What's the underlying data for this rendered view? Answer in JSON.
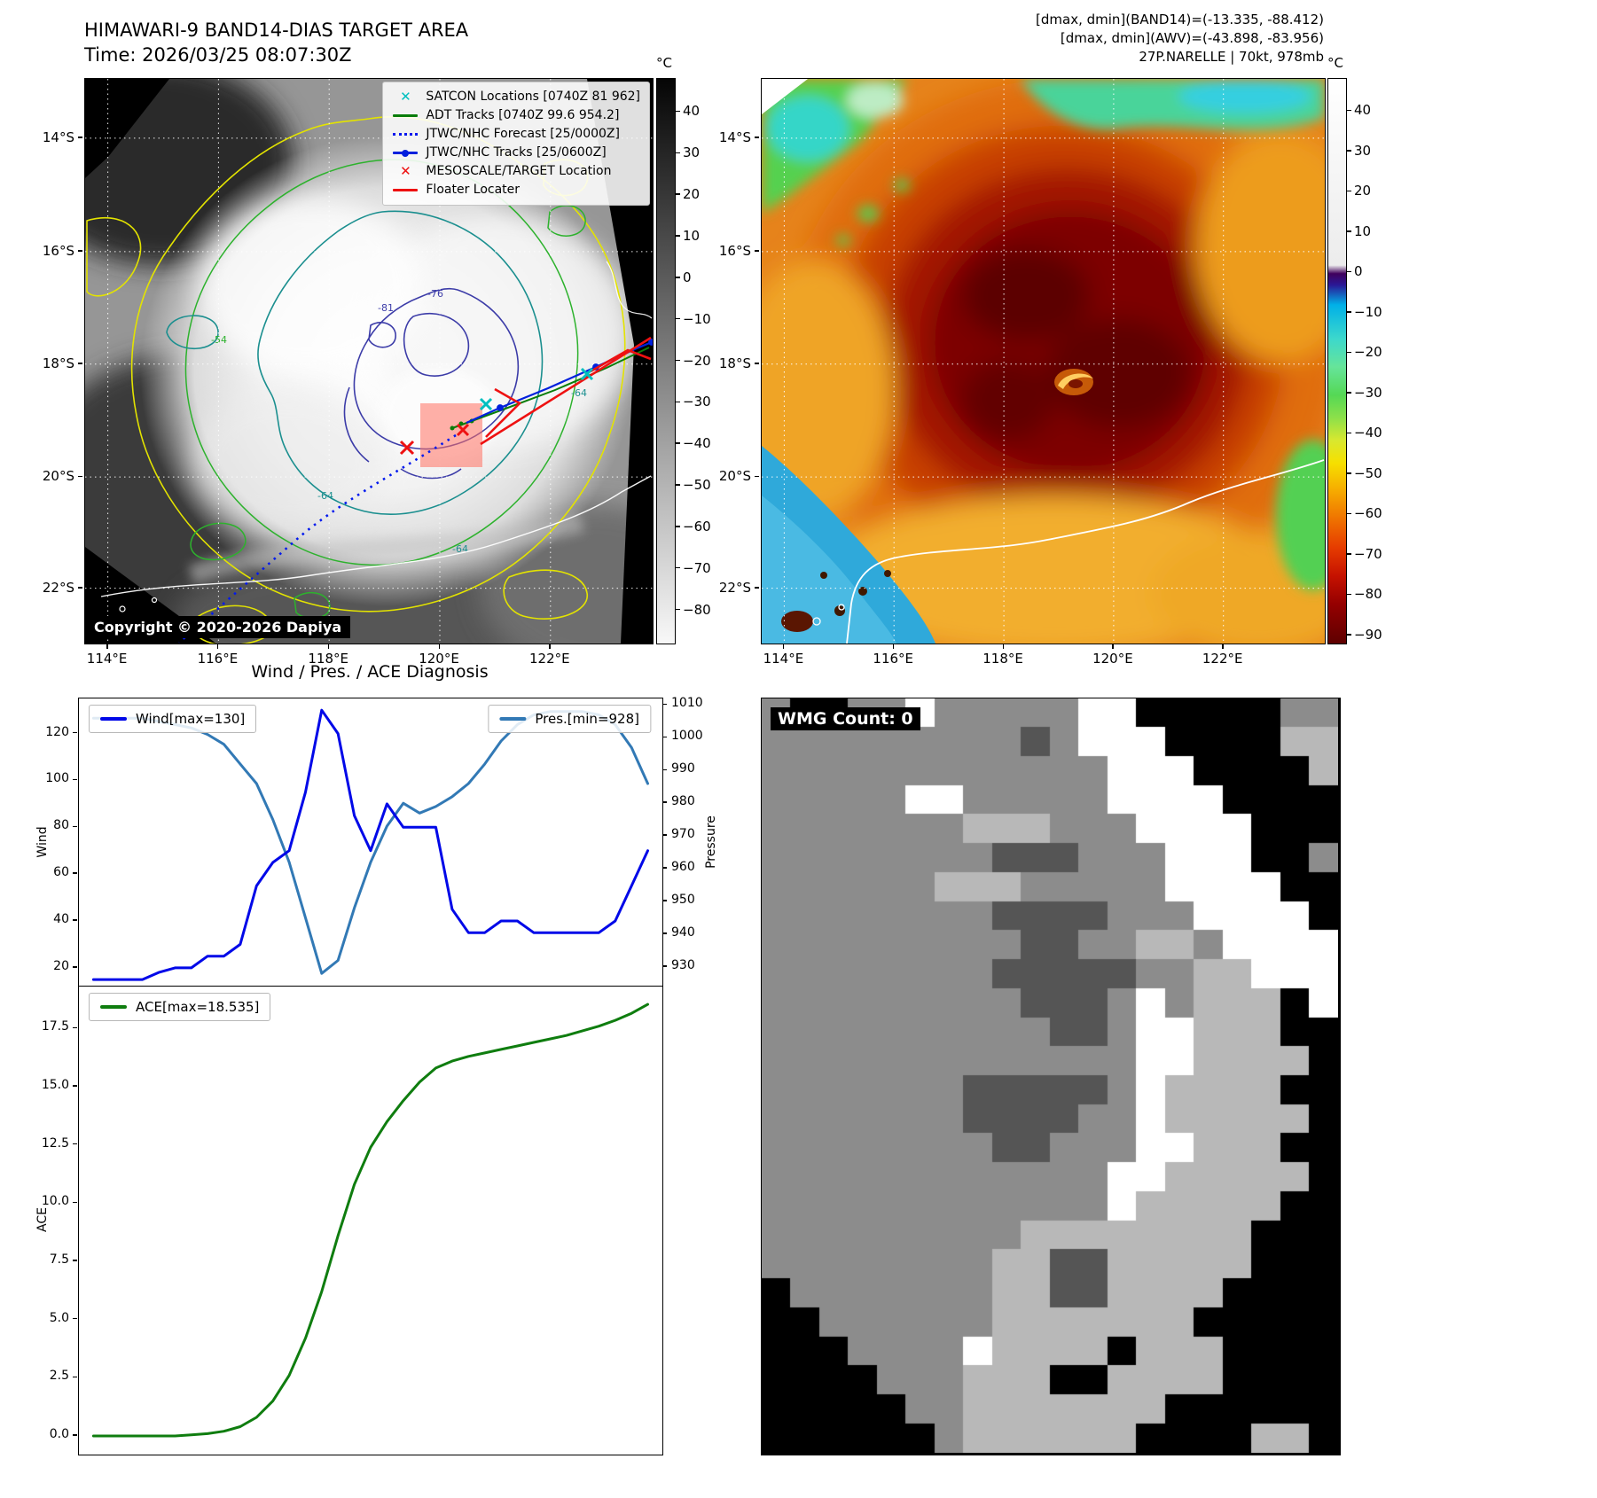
{
  "band14": {
    "title": "HIMAWARI-9 BAND14-DIAS TARGET AREA",
    "time": "Time: 2026/03/25 08:07:30Z",
    "copyright": "Copyright © 2020-2026 Dapiya",
    "legend": [
      {
        "label": "SATCON Locations [0740Z 81 962]",
        "marker": "x",
        "color": "#00bfbf"
      },
      {
        "label": "ADT Tracks [0740Z 99.6 954.2]",
        "marker": "line",
        "color": "#0a7d0a"
      },
      {
        "label": "JTWC/NHC Forecast [25/0000Z]",
        "marker": "dotted",
        "color": "#0018ee"
      },
      {
        "label": "JTWC/NHC Tracks [25/0600Z]",
        "marker": "line-dot",
        "color": "#0020dd"
      },
      {
        "label": "MESOSCALE/TARGET Location",
        "marker": "x",
        "color": "#ee1111"
      },
      {
        "label": "Floater Locater",
        "marker": "line",
        "color": "#ee1111"
      }
    ],
    "lat_ticks": [
      "14°S",
      "16°S",
      "18°S",
      "20°S",
      "22°S"
    ],
    "lon_ticks": [
      "114°E",
      "116°E",
      "118°E",
      "120°E",
      "122°E"
    ],
    "colorbar": {
      "unit": "°C",
      "ticks": [
        40,
        30,
        20,
        10,
        0,
        -10,
        -20,
        -30,
        -40,
        -50,
        -60,
        -70,
        -80
      ]
    },
    "contour_labels": [
      "-81",
      "-76",
      "-64",
      "-64",
      "-64",
      "-54"
    ]
  },
  "awv": {
    "info_lines": [
      "[dmax, dmin](BAND14)=(-13.335, -88.412)",
      "[dmax, dmin](AWV)=(-43.898, -83.956)",
      "27P.NARELLE | 70kt, 978mb"
    ],
    "lat_ticks": [
      "14°S",
      "16°S",
      "18°S",
      "20°S",
      "22°S"
    ],
    "lon_ticks": [
      "114°E",
      "116°E",
      "118°E",
      "120°E",
      "122°E"
    ],
    "colorbar": {
      "unit": "°C",
      "ticks": [
        40,
        30,
        20,
        10,
        0,
        -10,
        -20,
        -30,
        -40,
        -50,
        -60,
        -70,
        -80,
        -90
      ]
    }
  },
  "chart_data": [
    {
      "type": "line",
      "title": "Wind / Pres. / ACE Diagnosis",
      "x": [
        0,
        1,
        2,
        3,
        4,
        5,
        6,
        7,
        8,
        9,
        10,
        11,
        12,
        13,
        14,
        15,
        16,
        17,
        18,
        19,
        20,
        21,
        22,
        23,
        24,
        25,
        26,
        27,
        28,
        29,
        30,
        31,
        32,
        33,
        34
      ],
      "series": [
        {
          "name": "Wind[max=130]",
          "axis": "left",
          "color": "#0008e8",
          "values": [
            15,
            15,
            15,
            15,
            18,
            20,
            20,
            25,
            25,
            30,
            55,
            65,
            70,
            95,
            130,
            120,
            85,
            70,
            90,
            80,
            80,
            80,
            45,
            35,
            35,
            40,
            40,
            35,
            35,
            35,
            35,
            35,
            40,
            55,
            70
          ]
        },
        {
          "name": "Pres.[min=928]",
          "axis": "right",
          "color": "#3279b5",
          "values": [
            1006,
            1006,
            1006,
            1006,
            1005,
            1004,
            1003,
            1001,
            998,
            992,
            986,
            975,
            962,
            945,
            928,
            932,
            948,
            962,
            973,
            980,
            977,
            979,
            982,
            986,
            992,
            999,
            1004,
            1007,
            1008,
            1008,
            1008,
            1007,
            1004,
            997,
            986
          ]
        }
      ],
      "ylabel_left": "Wind",
      "ylabel_right": "Pressure",
      "ylim_left": [
        12,
        135
      ],
      "ylim_right": [
        924,
        1012
      ],
      "yticks_left": [
        20,
        40,
        60,
        80,
        100,
        120
      ],
      "yticks_right": [
        930,
        940,
        950,
        960,
        970,
        980,
        990,
        1000,
        1010
      ],
      "grid": false,
      "legend_position": "top-left / top-right"
    },
    {
      "type": "line",
      "title": "",
      "x": [
        0,
        1,
        2,
        3,
        4,
        5,
        6,
        7,
        8,
        9,
        10,
        11,
        12,
        13,
        14,
        15,
        16,
        17,
        18,
        19,
        20,
        21,
        22,
        23,
        24,
        25,
        26,
        27,
        28,
        29,
        30,
        31,
        32,
        33,
        34
      ],
      "series": [
        {
          "name": "ACE[max=18.535]",
          "axis": "left",
          "color": "#0f7d0f",
          "values": [
            0,
            0,
            0,
            0,
            0,
            0,
            0.05,
            0.1,
            0.2,
            0.4,
            0.8,
            1.5,
            2.6,
            4.2,
            6.2,
            8.6,
            10.8,
            12.4,
            13.5,
            14.4,
            15.2,
            15.8,
            16.1,
            16.3,
            16.45,
            16.6,
            16.75,
            16.9,
            17.05,
            17.2,
            17.4,
            17.6,
            17.85,
            18.15,
            18.535
          ]
        }
      ],
      "ylabel": "ACE",
      "ylim": [
        -0.8,
        19.3
      ],
      "yticks": [
        0.0,
        2.5,
        5.0,
        7.5,
        10.0,
        12.5,
        15.0,
        17.5
      ],
      "grid": false,
      "legend_position": "top-left"
    }
  ],
  "wmg": {
    "label": "WMG Count: 0",
    "palette": {
      "K": "#000000",
      "D": "#555555",
      "G": "#8c8c8c",
      "L": "#b8b8b8",
      "W": "#ffffff"
    },
    "rows": [
      "GKKGGWGGGGGWWKKKKKGG",
      "GGGGGGGGGDGWWWKKKKLL",
      "GGGGGGGGGGGGWWWKKKKL",
      "GGGGGWWGGGGGWWWWKKKK",
      "GGGGGGGLLLGGGWWWWKKK",
      "GGGGGGGGDDDGGGWWWKKG",
      "GGGGGGLLLGGGGGWWWWKK",
      "GGGGGGGGDDDDGGGWWWWK",
      "GGGGGGGGGDDGGLLGWWWW",
      "GGGGGGGGDDDDDGGLLWWW",
      "GGGGGGGGGDDDGWGLLLKW",
      "GGGGGGGGGGDDGWWLLLKK",
      "GGGGGGGGGGGGGWWLLLLK",
      "GGGGGGGDDDDDGWLLLLKK",
      "GGGGGGGDDDDGGWLLLLLK",
      "GGGGGGGGDDGGGWWLLLKK",
      "GGGGGGGGGGGGWWLLLLLK",
      "GGGGGGGGGGGGWLLLLLKK",
      "GGGGGGGGGLLLLLLLLKKK",
      "GGGGGGGGLLDDLLLLLKKK",
      "KGGGGGGGLLDDLLLLKKKK",
      "KKGGGGGGLLLLLLLKKKKK",
      "KKKGGGGWLLLLKLLLKKKK",
      "KKKKGGGLLLKKLLLLKKKK",
      "KKKKKGGLLLLLLLKKKKKK",
      "KKKKKKGLLLLLLKKKKLLK"
    ]
  }
}
